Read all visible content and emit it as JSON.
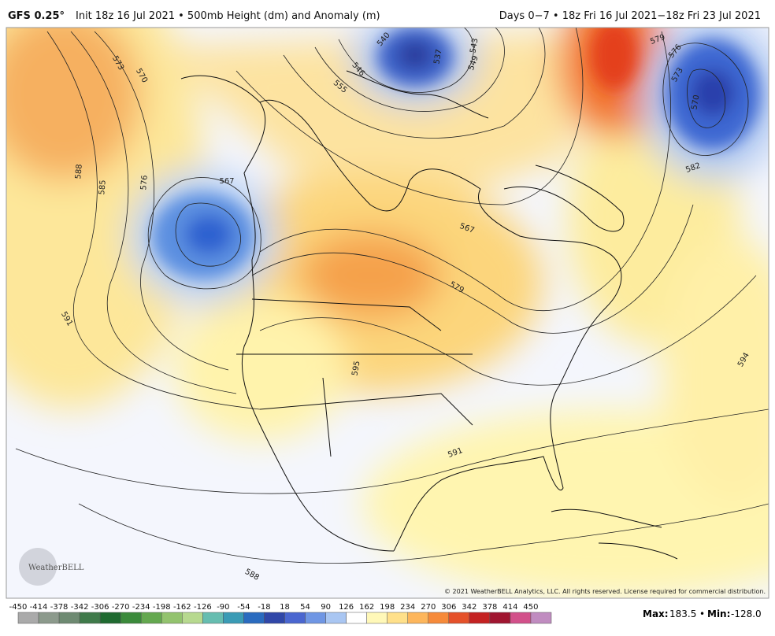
{
  "header": {
    "model": "GFS 0.25°",
    "description": "Init 18z 16 Jul 2021 • 500mb Height (dm) and Anomaly (m)",
    "period": "Days 0−7 • 18z Fri 16 Jul 2021−18z Fri 23 Jul 2021"
  },
  "contour_labels": [
    "573",
    "570",
    "588",
    "585",
    "576",
    "567",
    "591",
    "540",
    "537",
    "543",
    "549",
    "546",
    "555",
    "567",
    "579",
    "595",
    "591",
    "588",
    "579",
    "576",
    "573",
    "570",
    "582",
    "594"
  ],
  "logo": "WeatherBELL",
  "copyright": "© 2021 WeatherBELL Analytics, LLC. All rights reserved. License required for commercial distribution.",
  "colorbar": {
    "ticks": [
      -450,
      -414,
      -378,
      -342,
      -306,
      -270,
      -234,
      -198,
      -162,
      -126,
      -90,
      -54,
      -18,
      18,
      54,
      90,
      126,
      162,
      198,
      234,
      270,
      306,
      342,
      378,
      414,
      450
    ]
  },
  "stats": {
    "max_label": "Max:",
    "max": "183.5",
    "separator": "•",
    "min_label": "Min:",
    "min": "-128.0"
  }
}
